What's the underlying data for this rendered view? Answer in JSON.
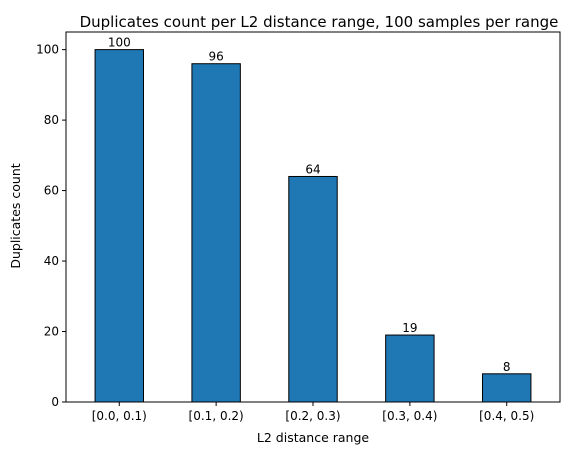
{
  "chart_data": {
    "type": "bar",
    "title": "Duplicates count per L2 distance range, 100 samples per range",
    "xlabel": "L2 distance range",
    "ylabel": "Duplicates count",
    "categories": [
      "[0.0, 0.1)",
      "[0.1, 0.2)",
      "[0.2, 0.3)",
      "[0.3, 0.4)",
      "[0.4, 0.5)"
    ],
    "values": [
      100,
      96,
      64,
      19,
      8
    ],
    "data_labels": [
      "100",
      "96",
      "64",
      "19",
      "8"
    ],
    "ylim": [
      0,
      105
    ],
    "yticks": [
      0,
      20,
      40,
      60,
      80,
      100
    ],
    "ytick_labels": [
      "0",
      "20",
      "40",
      "60",
      "80",
      "100"
    ],
    "grid": false,
    "legend": "none",
    "colors": {
      "bar_fill": "#1f77b4",
      "bar_edge": "#000000"
    }
  }
}
